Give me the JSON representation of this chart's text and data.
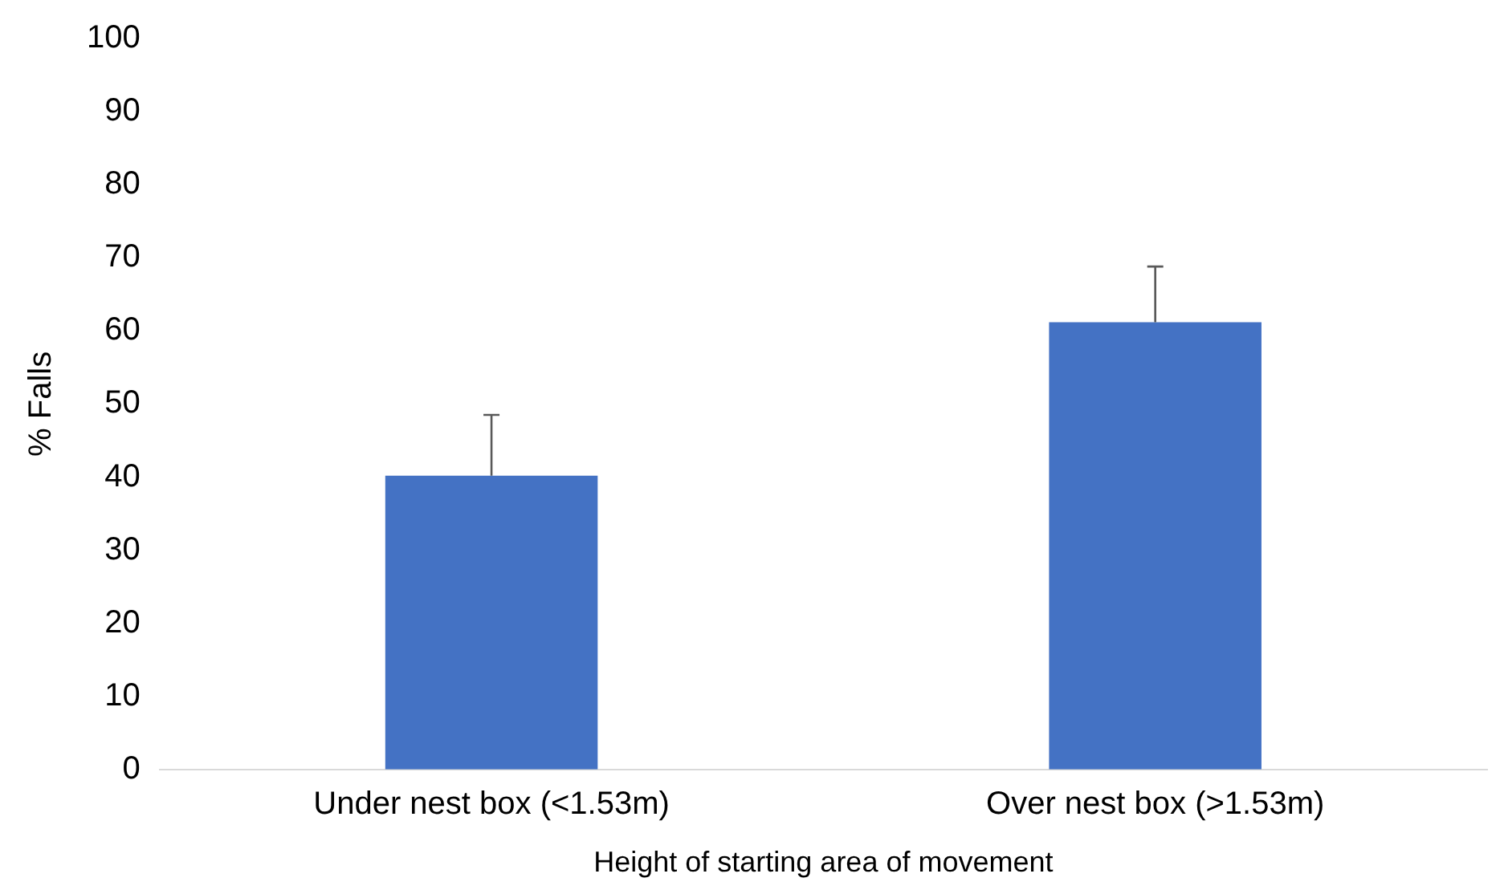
{
  "chart_data": {
    "type": "bar",
    "xlabel": "Height of starting area of movement",
    "ylabel": "% Falls",
    "categories": [
      "Under nest box (<1.53m)",
      "Over nest box (>1.53m)"
    ],
    "values": [
      40.2,
      61.2
    ],
    "color": "#4472c4",
    "errors": [
      [
        40.2,
        48.5
      ],
      [
        61.2,
        68.8
      ]
    ],
    "ylim": [
      0,
      100
    ],
    "yticks": [
      0,
      10,
      20,
      30,
      40,
      50,
      60,
      70,
      80,
      90,
      100
    ],
    "grid": false,
    "legend": false
  }
}
